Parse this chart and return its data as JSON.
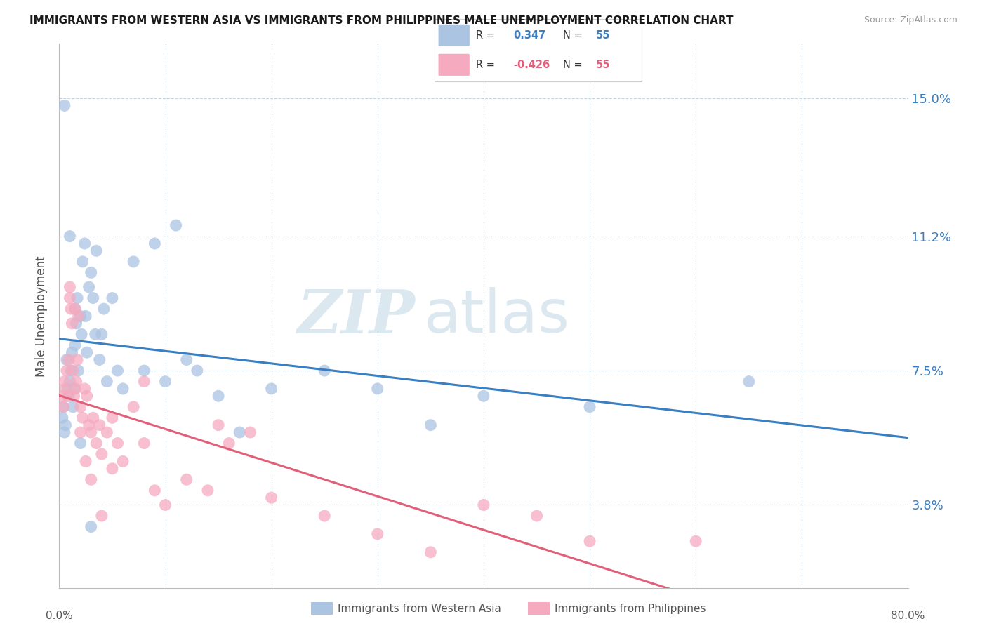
{
  "title": "IMMIGRANTS FROM WESTERN ASIA VS IMMIGRANTS FROM PHILIPPINES MALE UNEMPLOYMENT CORRELATION CHART",
  "source": "Source: ZipAtlas.com",
  "ylabel": "Male Unemployment",
  "yticks": [
    3.8,
    7.5,
    11.2,
    15.0
  ],
  "ytick_labels": [
    "3.8%",
    "7.5%",
    "11.2%",
    "15.0%"
  ],
  "xlim": [
    0.0,
    80.0
  ],
  "ylim": [
    1.5,
    16.5
  ],
  "color_blue": "#aac4e2",
  "color_pink": "#f5aabf",
  "color_blue_line": "#3a7fc1",
  "color_pink_line": "#e0607a",
  "color_dashed": "#9ab8d0",
  "grid_color": "#c8d4dc",
  "background_color": "#ffffff",
  "watermark_color": "#dce8f0",
  "western_asia_x": [
    0.3,
    0.4,
    0.5,
    0.6,
    0.7,
    0.8,
    0.9,
    1.0,
    1.1,
    1.2,
    1.3,
    1.4,
    1.5,
    1.6,
    1.7,
    1.8,
    2.0,
    2.1,
    2.2,
    2.4,
    2.5,
    2.6,
    2.8,
    3.0,
    3.2,
    3.4,
    3.5,
    3.8,
    4.0,
    4.2,
    4.5,
    5.0,
    5.5,
    6.0,
    7.0,
    8.0,
    9.0,
    10.0,
    11.0,
    12.0,
    13.0,
    15.0,
    17.0,
    20.0,
    25.0,
    30.0,
    35.0,
    40.0,
    50.0,
    65.0,
    0.5,
    1.0,
    1.5,
    2.0,
    3.0
  ],
  "western_asia_y": [
    6.2,
    6.5,
    5.8,
    6.0,
    7.8,
    7.0,
    6.8,
    7.2,
    7.5,
    8.0,
    6.5,
    7.0,
    8.2,
    8.8,
    9.5,
    7.5,
    9.0,
    8.5,
    10.5,
    11.0,
    9.0,
    8.0,
    9.8,
    10.2,
    9.5,
    8.5,
    10.8,
    7.8,
    8.5,
    9.2,
    7.2,
    9.5,
    7.5,
    7.0,
    10.5,
    7.5,
    11.0,
    7.2,
    11.5,
    7.8,
    7.5,
    6.8,
    5.8,
    7.0,
    7.5,
    7.0,
    6.0,
    6.8,
    6.5,
    7.2,
    14.8,
    11.2,
    9.2,
    5.5,
    3.2
  ],
  "philippines_x": [
    0.3,
    0.4,
    0.5,
    0.6,
    0.7,
    0.8,
    0.9,
    1.0,
    1.1,
    1.2,
    1.3,
    1.4,
    1.5,
    1.6,
    1.7,
    1.8,
    2.0,
    2.2,
    2.4,
    2.6,
    2.8,
    3.0,
    3.2,
    3.5,
    3.8,
    4.0,
    4.5,
    5.0,
    5.5,
    6.0,
    7.0,
    8.0,
    9.0,
    10.0,
    12.0,
    14.0,
    15.0,
    16.0,
    18.0,
    20.0,
    25.0,
    30.0,
    35.0,
    40.0,
    45.0,
    50.0,
    60.0,
    1.0,
    1.5,
    2.0,
    2.5,
    3.0,
    4.0,
    5.0,
    8.0
  ],
  "philippines_y": [
    6.8,
    6.5,
    7.2,
    7.0,
    7.5,
    6.8,
    7.8,
    9.5,
    9.2,
    8.8,
    7.5,
    6.8,
    7.0,
    7.2,
    7.8,
    9.0,
    6.5,
    6.2,
    7.0,
    6.8,
    6.0,
    5.8,
    6.2,
    5.5,
    6.0,
    5.2,
    5.8,
    4.8,
    5.5,
    5.0,
    6.5,
    5.5,
    4.2,
    3.8,
    4.5,
    4.2,
    6.0,
    5.5,
    5.8,
    4.0,
    3.5,
    3.0,
    2.5,
    3.8,
    3.5,
    2.8,
    2.8,
    9.8,
    9.2,
    5.8,
    5.0,
    4.5,
    3.5,
    6.2,
    7.2
  ],
  "r_western_asia": "0.347",
  "r_philippines": "-0.426",
  "n_western_asia": "55",
  "n_philippines": "55"
}
